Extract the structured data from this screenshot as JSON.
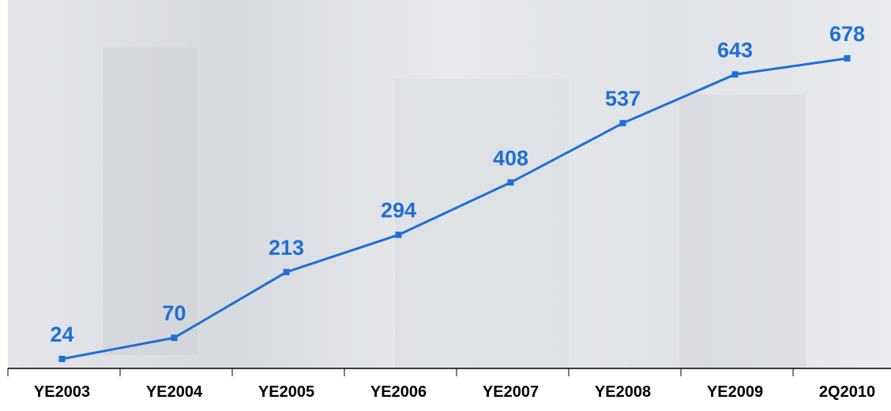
{
  "chart_data": {
    "type": "line",
    "categories": [
      "YE2003",
      "YE2004",
      "YE2005",
      "YE2006",
      "YE2007",
      "YE2008",
      "YE2009",
      "2Q2010"
    ],
    "values": [
      24,
      70,
      213,
      294,
      408,
      537,
      643,
      678
    ],
    "color": "#1f6fd4",
    "ylim": [
      0,
      805
    ]
  }
}
